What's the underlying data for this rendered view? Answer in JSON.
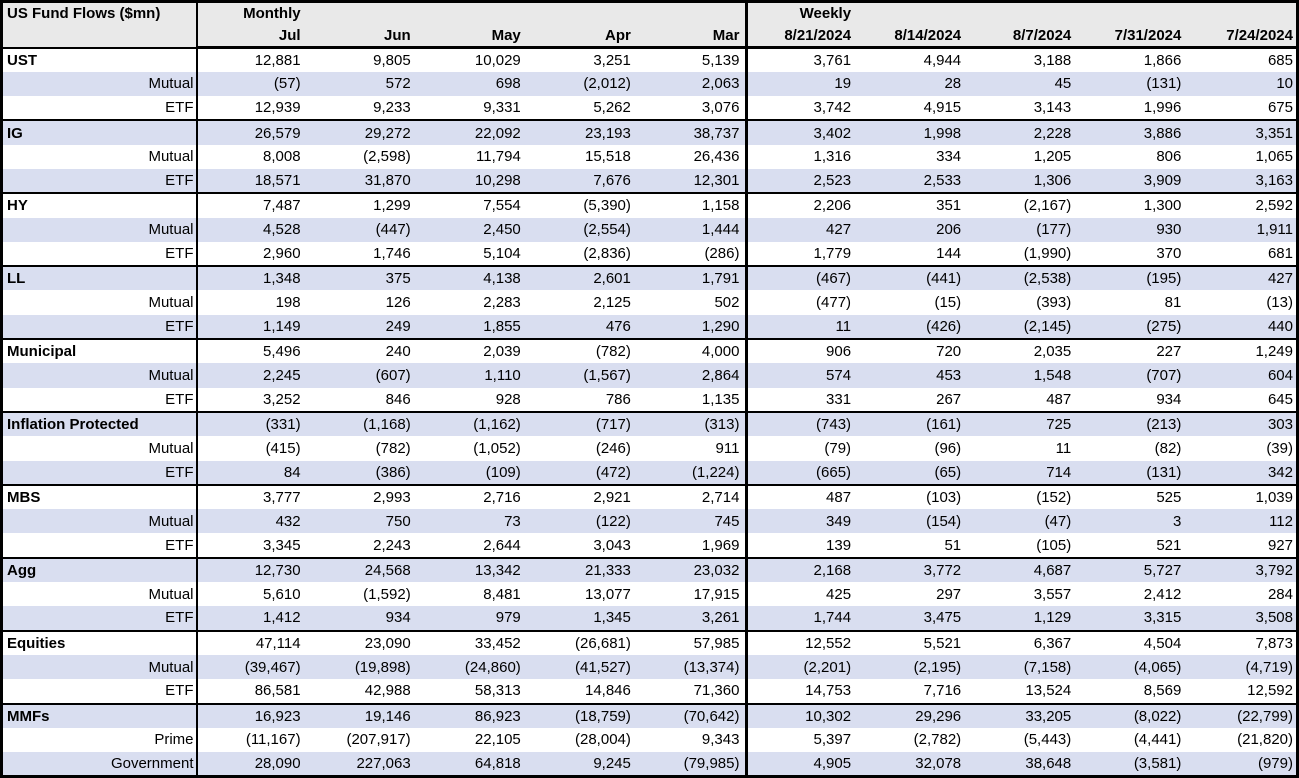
{
  "chart_data": {
    "type": "table",
    "title": "US Fund Flows ($mn)",
    "negative_format": "parentheses",
    "banding": "alternating rows, first row unshaded",
    "colors": {
      "band": "#d9def0",
      "header_bg": "#e9e9e9",
      "border": "#000000",
      "text": "#000000"
    },
    "sections": [
      {
        "label": "Monthly",
        "columns": [
          "Jul",
          "Jun",
          "May",
          "Apr",
          "Mar"
        ]
      },
      {
        "label": "Weekly",
        "columns": [
          "8/21/2024",
          "8/14/2024",
          "8/7/2024",
          "7/31/2024",
          "7/24/2024"
        ]
      }
    ],
    "rows": [
      {
        "label": "UST",
        "type": "group",
        "monthly": [
          "12,881",
          "9,805",
          "10,029",
          "3,251",
          "5,139"
        ],
        "weekly": [
          "3,761",
          "4,944",
          "3,188",
          "1,866",
          "685"
        ]
      },
      {
        "label": "Mutual",
        "type": "sub",
        "monthly": [
          "(57)",
          "572",
          "698",
          "(2,012)",
          "2,063"
        ],
        "weekly": [
          "19",
          "28",
          "45",
          "(131)",
          "10"
        ]
      },
      {
        "label": "ETF",
        "type": "sub",
        "monthly": [
          "12,939",
          "9,233",
          "9,331",
          "5,262",
          "3,076"
        ],
        "weekly": [
          "3,742",
          "4,915",
          "3,143",
          "1,996",
          "675"
        ]
      },
      {
        "label": "IG",
        "type": "group",
        "monthly": [
          "26,579",
          "29,272",
          "22,092",
          "23,193",
          "38,737"
        ],
        "weekly": [
          "3,402",
          "1,998",
          "2,228",
          "3,886",
          "3,351"
        ]
      },
      {
        "label": "Mutual",
        "type": "sub",
        "monthly": [
          "8,008",
          "(2,598)",
          "11,794",
          "15,518",
          "26,436"
        ],
        "weekly": [
          "1,316",
          "334",
          "1,205",
          "806",
          "1,065"
        ]
      },
      {
        "label": "ETF",
        "type": "sub",
        "monthly": [
          "18,571",
          "31,870",
          "10,298",
          "7,676",
          "12,301"
        ],
        "weekly": [
          "2,523",
          "2,533",
          "1,306",
          "3,909",
          "3,163"
        ]
      },
      {
        "label": "HY",
        "type": "group",
        "monthly": [
          "7,487",
          "1,299",
          "7,554",
          "(5,390)",
          "1,158"
        ],
        "weekly": [
          "2,206",
          "351",
          "(2,167)",
          "1,300",
          "2,592"
        ]
      },
      {
        "label": "Mutual",
        "type": "sub",
        "monthly": [
          "4,528",
          "(447)",
          "2,450",
          "(2,554)",
          "1,444"
        ],
        "weekly": [
          "427",
          "206",
          "(177)",
          "930",
          "1,911"
        ]
      },
      {
        "label": "ETF",
        "type": "sub",
        "monthly": [
          "2,960",
          "1,746",
          "5,104",
          "(2,836)",
          "(286)"
        ],
        "weekly": [
          "1,779",
          "144",
          "(1,990)",
          "370",
          "681"
        ]
      },
      {
        "label": "LL",
        "type": "group",
        "monthly": [
          "1,348",
          "375",
          "4,138",
          "2,601",
          "1,791"
        ],
        "weekly": [
          "(467)",
          "(441)",
          "(2,538)",
          "(195)",
          "427"
        ]
      },
      {
        "label": "Mutual",
        "type": "sub",
        "monthly": [
          "198",
          "126",
          "2,283",
          "2,125",
          "502"
        ],
        "weekly": [
          "(477)",
          "(15)",
          "(393)",
          "81",
          "(13)"
        ]
      },
      {
        "label": "ETF",
        "type": "sub",
        "monthly": [
          "1,149",
          "249",
          "1,855",
          "476",
          "1,290"
        ],
        "weekly": [
          "11",
          "(426)",
          "(2,145)",
          "(275)",
          "440"
        ]
      },
      {
        "label": "Municipal",
        "type": "group",
        "monthly": [
          "5,496",
          "240",
          "2,039",
          "(782)",
          "4,000"
        ],
        "weekly": [
          "906",
          "720",
          "2,035",
          "227",
          "1,249"
        ]
      },
      {
        "label": "Mutual",
        "type": "sub",
        "monthly": [
          "2,245",
          "(607)",
          "1,110",
          "(1,567)",
          "2,864"
        ],
        "weekly": [
          "574",
          "453",
          "1,548",
          "(707)",
          "604"
        ]
      },
      {
        "label": "ETF",
        "type": "sub",
        "monthly": [
          "3,252",
          "846",
          "928",
          "786",
          "1,135"
        ],
        "weekly": [
          "331",
          "267",
          "487",
          "934",
          "645"
        ]
      },
      {
        "label": "Inflation Protected",
        "type": "group",
        "monthly": [
          "(331)",
          "(1,168)",
          "(1,162)",
          "(717)",
          "(313)"
        ],
        "weekly": [
          "(743)",
          "(161)",
          "725",
          "(213)",
          "303"
        ]
      },
      {
        "label": "Mutual",
        "type": "sub",
        "monthly": [
          "(415)",
          "(782)",
          "(1,052)",
          "(246)",
          "911"
        ],
        "weekly": [
          "(79)",
          "(96)",
          "11",
          "(82)",
          "(39)"
        ]
      },
      {
        "label": "ETF",
        "type": "sub",
        "monthly": [
          "84",
          "(386)",
          "(109)",
          "(472)",
          "(1,224)"
        ],
        "weekly": [
          "(665)",
          "(65)",
          "714",
          "(131)",
          "342"
        ]
      },
      {
        "label": "MBS",
        "type": "group",
        "monthly": [
          "3,777",
          "2,993",
          "2,716",
          "2,921",
          "2,714"
        ],
        "weekly": [
          "487",
          "(103)",
          "(152)",
          "525",
          "1,039"
        ]
      },
      {
        "label": "Mutual",
        "type": "sub",
        "monthly": [
          "432",
          "750",
          "73",
          "(122)",
          "745"
        ],
        "weekly": [
          "349",
          "(154)",
          "(47)",
          "3",
          "112"
        ]
      },
      {
        "label": "ETF",
        "type": "sub",
        "monthly": [
          "3,345",
          "2,243",
          "2,644",
          "3,043",
          "1,969"
        ],
        "weekly": [
          "139",
          "51",
          "(105)",
          "521",
          "927"
        ]
      },
      {
        "label": "Agg",
        "type": "group",
        "monthly": [
          "12,730",
          "24,568",
          "13,342",
          "21,333",
          "23,032"
        ],
        "weekly": [
          "2,168",
          "3,772",
          "4,687",
          "5,727",
          "3,792"
        ]
      },
      {
        "label": "Mutual",
        "type": "sub",
        "monthly": [
          "5,610",
          "(1,592)",
          "8,481",
          "13,077",
          "17,915"
        ],
        "weekly": [
          "425",
          "297",
          "3,557",
          "2,412",
          "284"
        ]
      },
      {
        "label": "ETF",
        "type": "sub",
        "monthly": [
          "1,412",
          "934",
          "979",
          "1,345",
          "3,261"
        ],
        "weekly": [
          "1,744",
          "3,475",
          "1,129",
          "3,315",
          "3,508"
        ]
      },
      {
        "label": "Equities",
        "type": "group",
        "monthly": [
          "47,114",
          "23,090",
          "33,452",
          "(26,681)",
          "57,985"
        ],
        "weekly": [
          "12,552",
          "5,521",
          "6,367",
          "4,504",
          "7,873"
        ]
      },
      {
        "label": "Mutual",
        "type": "sub",
        "monthly": [
          "(39,467)",
          "(19,898)",
          "(24,860)",
          "(41,527)",
          "(13,374)"
        ],
        "weekly": [
          "(2,201)",
          "(2,195)",
          "(7,158)",
          "(4,065)",
          "(4,719)"
        ]
      },
      {
        "label": "ETF",
        "type": "sub",
        "monthly": [
          "86,581",
          "42,988",
          "58,313",
          "14,846",
          "71,360"
        ],
        "weekly": [
          "14,753",
          "7,716",
          "13,524",
          "8,569",
          "12,592"
        ]
      },
      {
        "label": "MMFs",
        "type": "group",
        "monthly": [
          "16,923",
          "19,146",
          "86,923",
          "(18,759)",
          "(70,642)"
        ],
        "weekly": [
          "10,302",
          "29,296",
          "33,205",
          "(8,022)",
          "(22,799)"
        ]
      },
      {
        "label": "Prime",
        "type": "sub",
        "monthly": [
          "(11,167)",
          "(207,917)",
          "22,105",
          "(28,004)",
          "9,343"
        ],
        "weekly": [
          "5,397",
          "(2,782)",
          "(5,443)",
          "(4,441)",
          "(21,820)"
        ]
      },
      {
        "label": "Government",
        "type": "sub",
        "monthly": [
          "28,090",
          "227,063",
          "64,818",
          "9,245",
          "(79,985)"
        ],
        "weekly": [
          "4,905",
          "32,078",
          "38,648",
          "(3,581)",
          "(979)"
        ]
      }
    ]
  }
}
